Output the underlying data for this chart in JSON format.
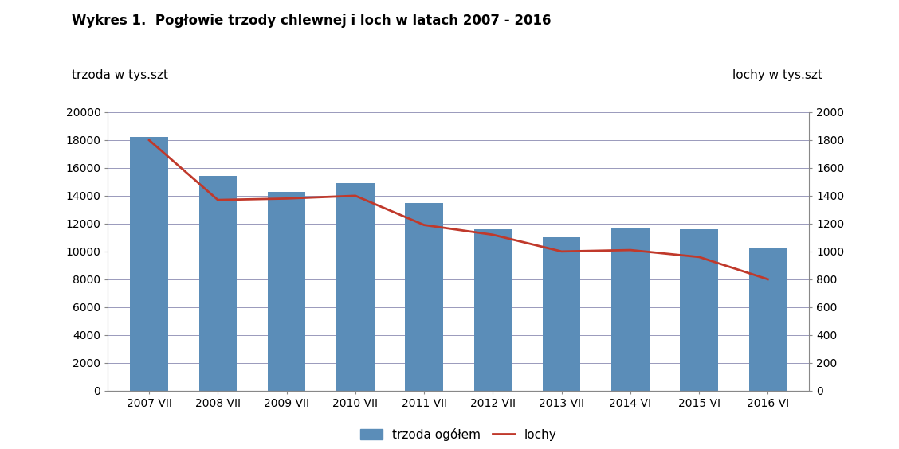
{
  "title": "Wykres 1.  Pogłowie trzody chlewnej i loch w latach 2007 - 2016",
  "categories": [
    "2007 VII",
    "2008 VII",
    "2009 VII",
    "2010 VII",
    "2011 VII",
    "2012 VII",
    "2013 VII",
    "2014 VI",
    "2015 VI",
    "2016 VI"
  ],
  "bar_values": [
    18200,
    15400,
    14300,
    14900,
    13500,
    11600,
    11000,
    11700,
    11600,
    10200
  ],
  "line_values": [
    1800,
    1370,
    1380,
    1400,
    1190,
    1120,
    1000,
    1010,
    960,
    800
  ],
  "bar_color": "#5B8DB8",
  "line_color": "#C0392B",
  "ylabel_left": "trzoda w tys.szt",
  "ylabel_right": "lochy w tys.szt",
  "ylim_left": [
    0,
    20000
  ],
  "ylim_right": [
    0,
    2000
  ],
  "yticks_left": [
    0,
    2000,
    4000,
    6000,
    8000,
    10000,
    12000,
    14000,
    16000,
    18000,
    20000
  ],
  "yticks_right": [
    0,
    200,
    400,
    600,
    800,
    1000,
    1200,
    1400,
    1600,
    1800,
    2000
  ],
  "legend_bar_label": "trzoda ogółem",
  "legend_line_label": "lochy",
  "background_color": "#FFFFFF",
  "grid_color": "#9999BB",
  "title_fontsize": 12,
  "label_fontsize": 11,
  "tick_fontsize": 10,
  "legend_fontsize": 11
}
